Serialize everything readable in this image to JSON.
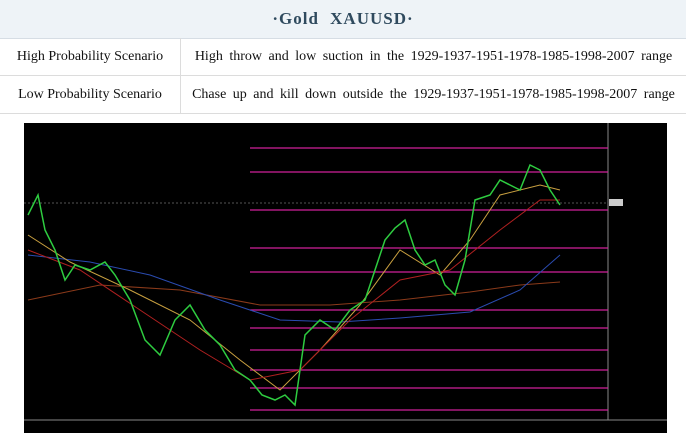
{
  "header": {
    "title": "·Gold XAUUSD·"
  },
  "table": {
    "rows": [
      [
        "High Probability Scenario",
        "High throw and low suction in the 1929-1937-1951-1978-1985-1998-2007 range"
      ],
      [
        "Low Probability Scenario",
        "Chase up and kill down outside the 1929-1937-1951-1978-1985-1998-2007 range"
      ]
    ]
  }
}
